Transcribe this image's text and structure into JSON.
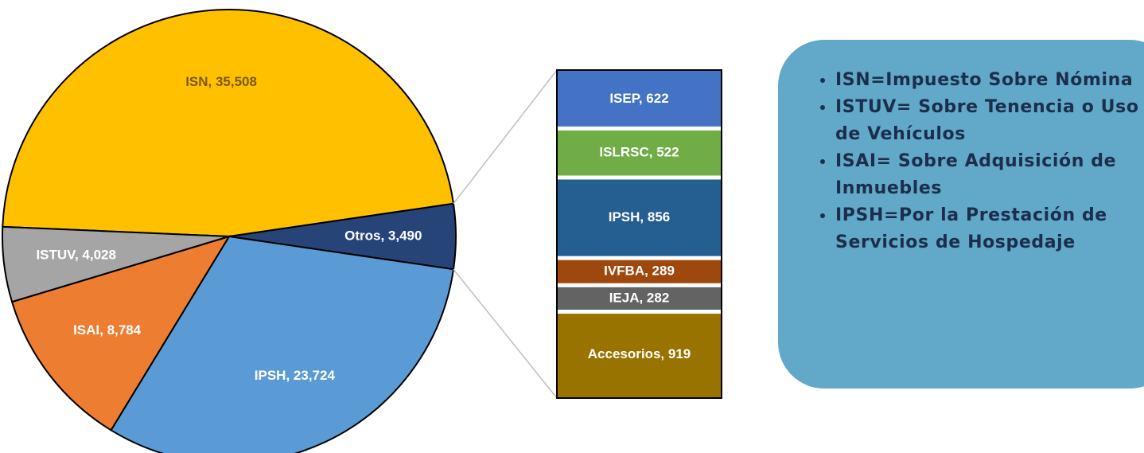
{
  "chart_data": [
    {
      "type": "pie",
      "values": [
        35508,
        3490,
        23724,
        8784,
        4028
      ],
      "value_labels": [
        "ISN, 35,508",
        "Otros, 3,490",
        "IPSH, 23,724",
        "ISAI, 8,784",
        "ISTUV, 4,028"
      ],
      "colors": [
        "#ffc000",
        "#264478",
        "#5b9bd5",
        "#ed7d31",
        "#a5a5a5"
      ]
    },
    {
      "type": "bar",
      "values": [
        622,
        522,
        856,
        289,
        282,
        919
      ],
      "value_labels": [
        "ISEP, 622",
        "ISLRSC, 522",
        "IPSH, 856",
        "IVFBA, 289",
        "IEJA, 282",
        "Accesorios, 919"
      ],
      "colors": [
        "#4472c4",
        "#70ad47",
        "#255e91",
        "#9e480e",
        "#636363",
        "#997300"
      ]
    }
  ],
  "notes": [
    "ISN=Impuesto Sobre Nómina",
    "ISTUV= Sobre Tenencia o Uso de Vehículos",
    "ISAI= Sobre Adquisición de Inmuebles",
    "IPSH=Por la Prestación de Servicios de Hospedaje"
  ]
}
